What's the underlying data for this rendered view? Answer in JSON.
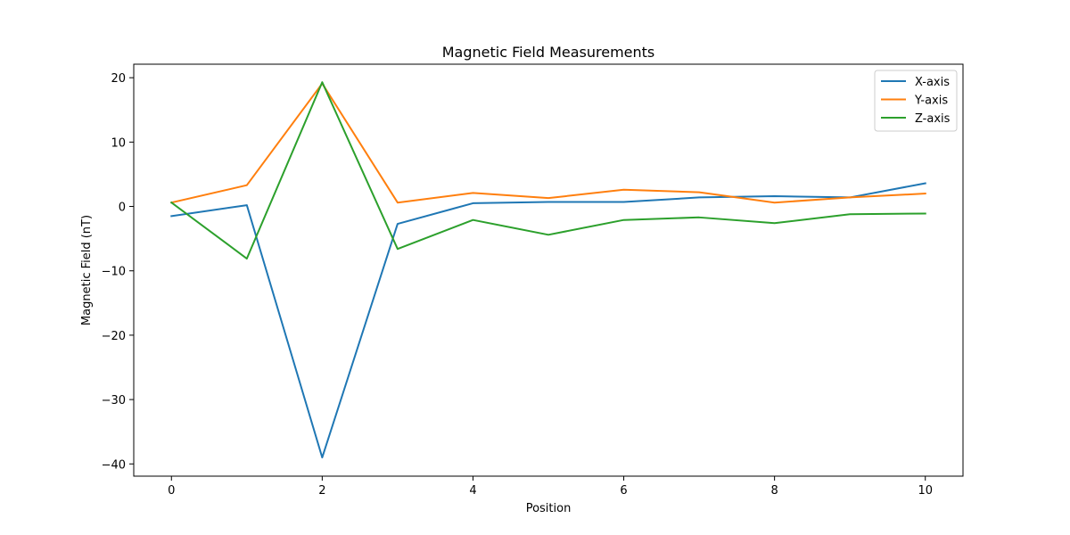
{
  "chart_data": {
    "type": "line",
    "title": "Magnetic Field Measurements",
    "xlabel": "Position",
    "ylabel": "Magnetic Field (nT)",
    "x": [
      0,
      1,
      2,
      3,
      4,
      5,
      6,
      7,
      8,
      9,
      10
    ],
    "xlim": [
      -0.5,
      10.5
    ],
    "ylim": [
      -41.9,
      22.1
    ],
    "xticks": [
      0,
      2,
      4,
      6,
      8,
      10
    ],
    "yticks": [
      -40,
      -30,
      -20,
      -10,
      0,
      10,
      20
    ],
    "ytick_labels": [
      "−40",
      "−30",
      "−20",
      "−10",
      "0",
      "10",
      "20"
    ],
    "grid": false,
    "legend_position": "upper right",
    "series": [
      {
        "name": "X-axis",
        "color": "#1f77b4",
        "values": [
          -1.5,
          0.2,
          -39.0,
          -2.7,
          0.5,
          0.7,
          0.7,
          1.4,
          1.6,
          1.4,
          3.6
        ]
      },
      {
        "name": "Y-axis",
        "color": "#ff7f0e",
        "values": [
          0.6,
          3.3,
          19.1,
          0.6,
          2.1,
          1.3,
          2.6,
          2.2,
          0.6,
          1.4,
          2.0
        ]
      },
      {
        "name": "Z-axis",
        "color": "#2ca02c",
        "values": [
          0.6,
          -8.1,
          19.3,
          -6.6,
          -2.1,
          -4.4,
          -2.1,
          -1.7,
          -2.6,
          -1.2,
          -1.1
        ]
      }
    ]
  }
}
